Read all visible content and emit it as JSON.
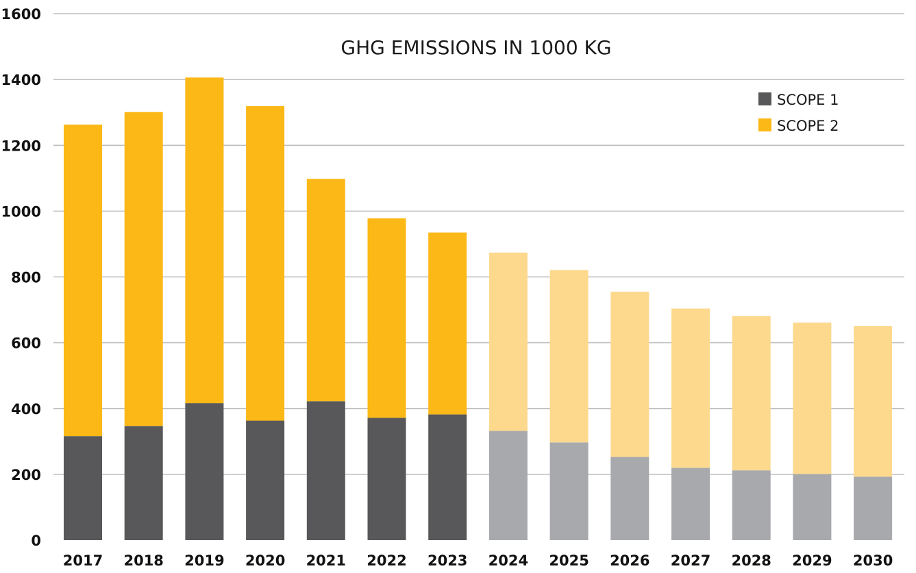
{
  "chart_data": {
    "type": "bar",
    "stacked": true,
    "title": "GHG EMISSIONS IN 1000 KG",
    "xlabel": "",
    "ylabel": "",
    "ylim": [
      0,
      1600
    ],
    "yticks": [
      "0",
      "200",
      "400",
      "600",
      "800",
      "1000",
      "1200",
      "1400",
      "1600"
    ],
    "grid": true,
    "legend_position": "top-right",
    "categories": [
      "2017",
      "2018",
      "2019",
      "2020",
      "2021",
      "2022",
      "2023",
      "2024",
      "2025",
      "2026",
      "2027",
      "2028",
      "2029",
      "2030"
    ],
    "projected_from": "2024",
    "series": [
      {
        "name": "SCOPE 1",
        "color": "#58585a",
        "projected_color": "#a8a9ac",
        "values": [
          316,
          347,
          416,
          363,
          422,
          372,
          382,
          332,
          297,
          253,
          220,
          212,
          201,
          193
        ]
      },
      {
        "name": "SCOPE 2",
        "color": "#fcb817",
        "projected_color": "#fdd98e",
        "values": [
          947,
          954,
          990,
          956,
          676,
          606,
          553,
          542,
          524,
          502,
          484,
          469,
          460,
          458
        ]
      }
    ]
  }
}
